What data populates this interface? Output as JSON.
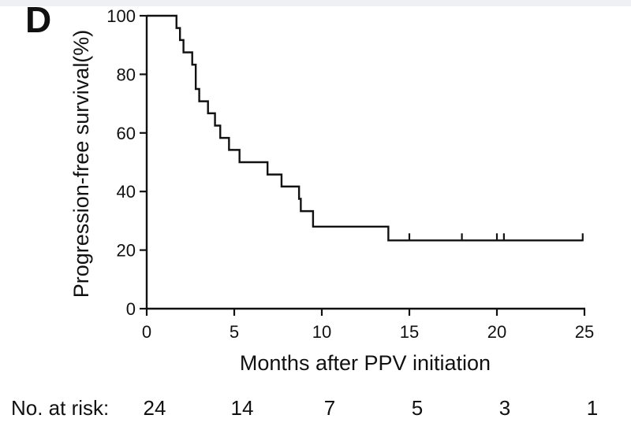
{
  "panel_label": "D",
  "colors": {
    "line": "#111111",
    "background": "#ffffff"
  },
  "chart_data": {
    "type": "line",
    "subtype": "kaplan-meier step curve",
    "title": "",
    "xlabel": "Months after PPV initiation",
    "ylabel": "Progression-free survival(%)",
    "xlim": [
      0,
      25
    ],
    "ylim": [
      0,
      100
    ],
    "xticks": [
      0,
      5,
      10,
      15,
      20,
      25
    ],
    "yticks": [
      0,
      20,
      40,
      60,
      80,
      100
    ],
    "grid": false,
    "legend": "none",
    "series": [
      {
        "x": [
          0,
          1.7,
          1.9,
          2.1,
          2.6,
          2.8,
          3.0,
          3.5,
          3.9,
          4.2,
          4.7,
          5.3,
          5.7,
          6.9,
          7.7,
          8.7,
          8.8,
          9.0,
          9.5,
          13.8,
          24.9
        ],
        "y": [
          100,
          95.8,
          91.7,
          87.5,
          83.3,
          75.0,
          70.8,
          66.7,
          62.5,
          58.3,
          54.2,
          50.0,
          50.0,
          45.8,
          41.7,
          37.5,
          33.3,
          33.3,
          28.0,
          23.3,
          23.3
        ],
        "censored_x": [
          15.0,
          18.0,
          20.0,
          20.4,
          24.9
        ],
        "censored_y": 23.3
      }
    ],
    "risk_table": {
      "label": "No. at risk:",
      "times": [
        0,
        5,
        10,
        15,
        20,
        25
      ],
      "values": [
        "24",
        "14",
        "7",
        "5",
        "3",
        "1"
      ]
    }
  }
}
